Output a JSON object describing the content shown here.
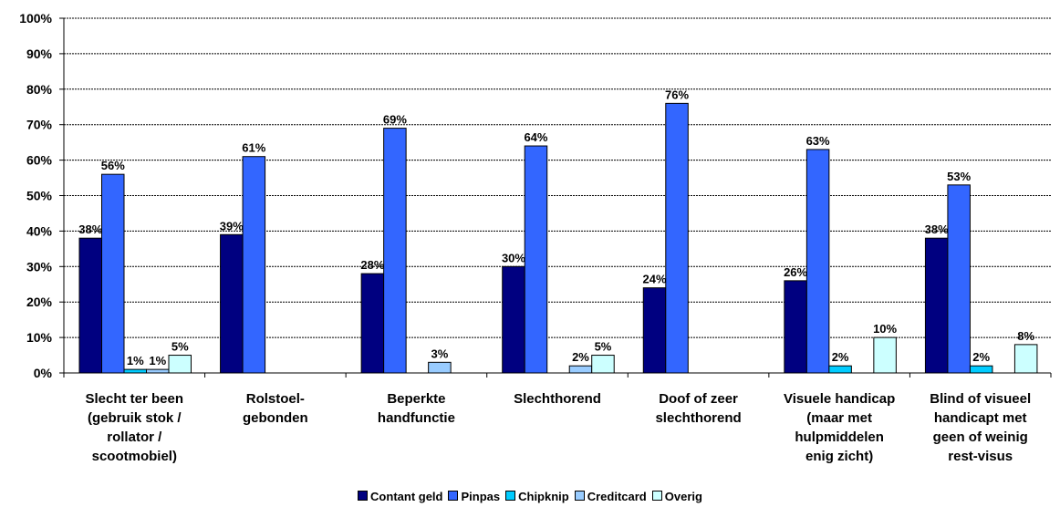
{
  "chart_data": {
    "type": "bar",
    "categories": [
      "Slecht ter been (gebruik stok / rollator / scootmobiel)",
      "Rolstoel-gebonden",
      "Beperkte handfunctie",
      "Slechthorend",
      "Doof of zeer slechthorend",
      "Visuele handicap (maar met hulpmiddelen enig zicht)",
      "Blind of visueel handicapt met geen of weinig rest-visus"
    ],
    "category_lines": [
      [
        "Slecht ter been",
        "(gebruik stok /",
        "rollator /",
        "scootmobiel)"
      ],
      [
        "Rolstoel-",
        "gebonden"
      ],
      [
        "Beperkte",
        "handfunctie"
      ],
      [
        "Slechthorend"
      ],
      [
        "Doof of zeer",
        "slechthorend"
      ],
      [
        "Visuele handicap",
        "(maar met",
        "hulpmiddelen",
        "enig zicht)"
      ],
      [
        "Blind of visueel",
        "handicapt met",
        "geen of weinig",
        "rest-visus"
      ]
    ],
    "series": [
      {
        "name": "Contant geld",
        "color": "#000080",
        "values": [
          38,
          39,
          28,
          30,
          24,
          26,
          38
        ],
        "labels": [
          "38%",
          "39%",
          "28%",
          "30%",
          "24%",
          "26%",
          "38%"
        ]
      },
      {
        "name": "Pinpas",
        "color": "#3366FF",
        "values": [
          56,
          61,
          69,
          64,
          76,
          63,
          53
        ],
        "labels": [
          "56%",
          "61%",
          "69%",
          "64%",
          "76%",
          "63%",
          "53%"
        ]
      },
      {
        "name": "Chipknip",
        "color": "#00CCFF",
        "values": [
          1,
          0,
          0,
          0,
          0,
          2,
          2
        ],
        "labels": [
          "1%",
          "",
          "",
          "",
          "",
          "2%",
          "2%"
        ]
      },
      {
        "name": "Creditcard",
        "color": "#99CCFF",
        "values": [
          1,
          0,
          3,
          2,
          0,
          0,
          0
        ],
        "labels": [
          "1%",
          "",
          "3%",
          "2%",
          "",
          "",
          ""
        ]
      },
      {
        "name": "Overig",
        "color": "#CCFFFF",
        "values": [
          5,
          0,
          0,
          5,
          0,
          10,
          8
        ],
        "labels": [
          "5%",
          "",
          "",
          "5%",
          "",
          "10%",
          "8%"
        ]
      }
    ],
    "y_ticks": [
      "0%",
      "10%",
      "20%",
      "30%",
      "40%",
      "50%",
      "60%",
      "70%",
      "80%",
      "90%",
      "100%"
    ],
    "ylim": [
      0,
      100
    ],
    "grid": true,
    "legend_position": "bottom"
  }
}
